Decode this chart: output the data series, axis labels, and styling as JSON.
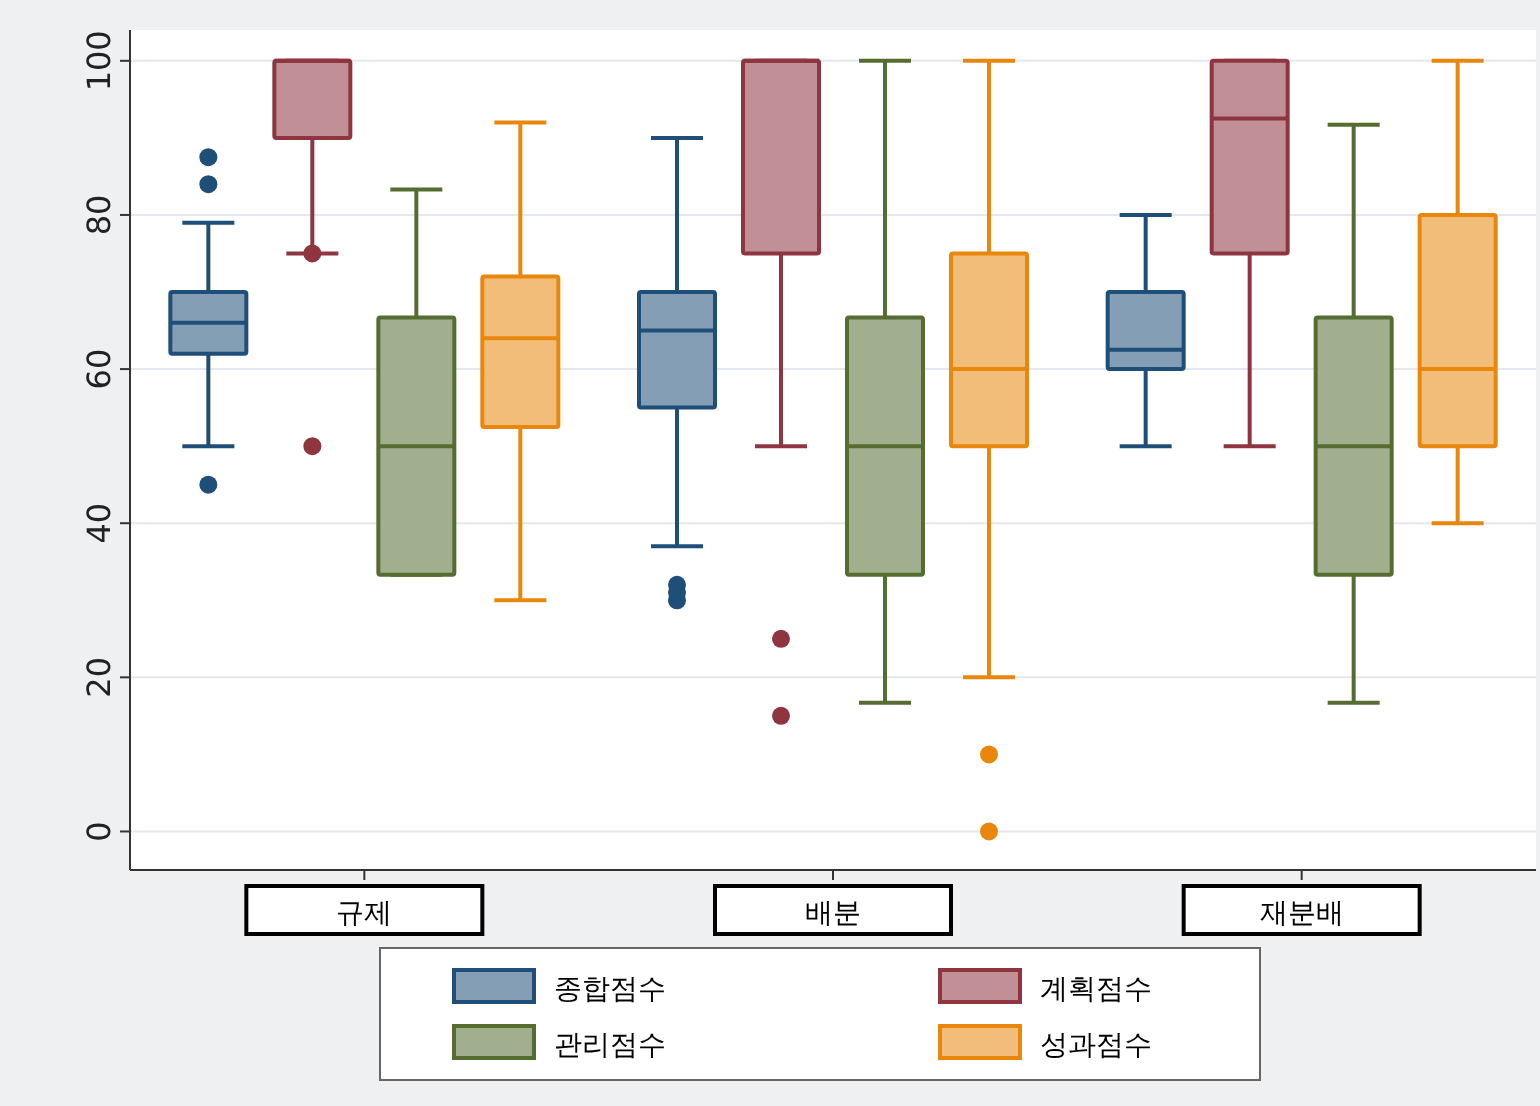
{
  "chart_data": {
    "type": "box",
    "categories": [
      "규제",
      "배분",
      "재분배"
    ],
    "ylim": [
      -5,
      104
    ],
    "yticks": [
      0,
      20,
      40,
      60,
      80,
      100
    ],
    "grid": "y",
    "legend": "bottom",
    "series": [
      {
        "name": "종합점수",
        "color": "#1f4e79",
        "boxes": [
          {
            "low": 50,
            "q1": 62,
            "median": 66,
            "q3": 70,
            "high": 79,
            "outliers": [
              45,
              84,
              87.5
            ]
          },
          {
            "low": 37,
            "q1": 55,
            "median": 65,
            "q3": 70,
            "high": 90,
            "outliers": [
              30,
              31,
              32
            ]
          },
          {
            "low": 50,
            "q1": 60,
            "median": 62.5,
            "q3": 70,
            "high": 80
          }
        ]
      },
      {
        "name": "계획점수",
        "color": "#8e3540",
        "boxes": [
          {
            "low": 75,
            "q1": 90,
            "median": 100,
            "q3": 100,
            "high": 100,
            "outliers": [
              50,
              75
            ]
          },
          {
            "low": 50,
            "q1": 75,
            "median": 100,
            "q3": 100,
            "high": 100,
            "outliers": [
              15,
              25
            ]
          },
          {
            "low": 50,
            "q1": 75,
            "median": 92.5,
            "q3": 100,
            "high": 100
          }
        ]
      },
      {
        "name": "관리점수",
        "color": "#566d31",
        "boxes": [
          {
            "low": 33.3,
            "q1": 33.3,
            "median": 50,
            "q3": 66.7,
            "high": 83.3
          },
          {
            "low": 16.7,
            "q1": 33.3,
            "median": 50,
            "q3": 66.7,
            "high": 100
          },
          {
            "low": 16.7,
            "q1": 33.3,
            "median": 50,
            "q3": 66.7,
            "high": 91.7
          }
        ]
      },
      {
        "name": "성과점수",
        "color": "#e8870c",
        "boxes": [
          {
            "low": 30,
            "q1": 52.5,
            "median": 64,
            "q3": 72,
            "high": 92
          },
          {
            "low": 20,
            "q1": 50,
            "median": 60,
            "q3": 75,
            "high": 100,
            "outliers": [
              0,
              10
            ]
          },
          {
            "low": 40,
            "q1": 50,
            "median": 60,
            "q3": 80,
            "high": 100
          }
        ]
      }
    ]
  }
}
